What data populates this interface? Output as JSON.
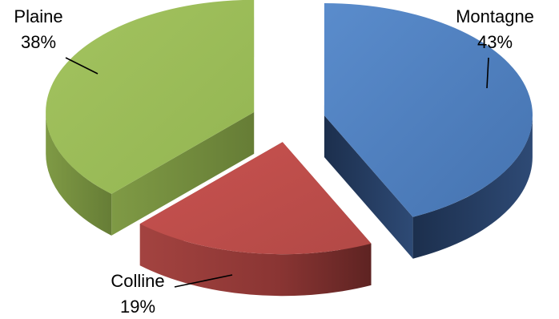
{
  "chart_data": {
    "type": "pie",
    "style": "3d-exploded",
    "title": "",
    "slices": [
      {
        "name": "Montagne",
        "value": 43,
        "value_label": "43%",
        "color": "#4f81bd"
      },
      {
        "name": "Colline",
        "value": 19,
        "value_label": "19%",
        "color": "#c0504d"
      },
      {
        "name": "Plaine",
        "value": 38,
        "value_label": "38%",
        "color": "#9bbb59"
      }
    ],
    "legend": "none"
  }
}
